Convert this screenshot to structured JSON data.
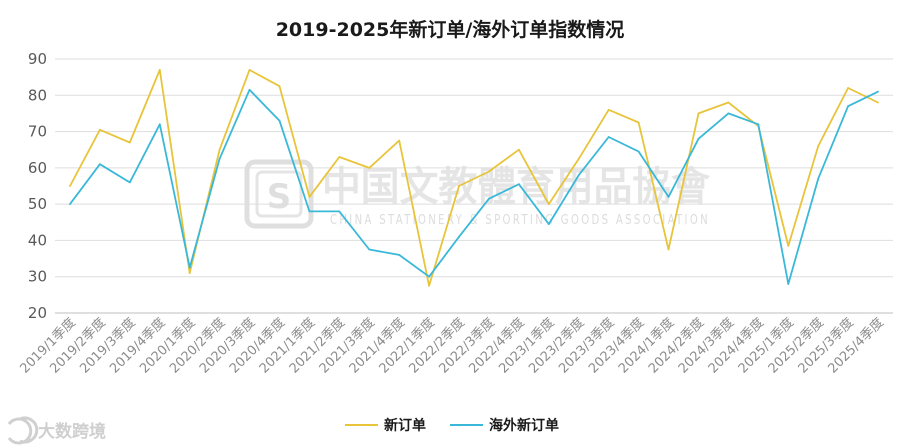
{
  "chart_data": {
    "type": "line",
    "title": "2019-2025年新订单/海外订单指数情况",
    "xlabel": "",
    "ylabel": "",
    "ylim": [
      20,
      90
    ],
    "yticks": [
      20,
      30,
      40,
      50,
      60,
      70,
      80,
      90
    ],
    "grid": true,
    "legend_position": "bottom",
    "categories": [
      "2019/1季度",
      "2019/2季度",
      "2019/3季度",
      "2019/4季度",
      "2020/1季度",
      "2020/2季度",
      "2020/3季度",
      "2020/4季度",
      "2021/1季度",
      "2021/2季度",
      "2021/3季度",
      "2021/4季度",
      "2022/1季度",
      "2022/2季度",
      "2022/3季度",
      "2022/4季度",
      "2023/1季度",
      "2023/2季度",
      "2023/3季度",
      "2023/4季度",
      "2024/1季度",
      "2024/2季度",
      "2024/3季度",
      "2024/4季度",
      "2025/1季度",
      "2025/2季度",
      "2025/3季度",
      "2025/4季度"
    ],
    "series": [
      {
        "name": "新订单",
        "color": "#e8c43a",
        "values": [
          55,
          70.5,
          67,
          87,
          31,
          65,
          87,
          82.5,
          52,
          63,
          60,
          67.5,
          27.5,
          55,
          59,
          65,
          50,
          62.5,
          76,
          72.5,
          37.5,
          75,
          78,
          71.5,
          38.5,
          66,
          82,
          78
        ]
      },
      {
        "name": "海外新订单",
        "color": "#3ab8d8",
        "values": [
          50,
          61,
          56,
          72,
          32.5,
          62.5,
          81.5,
          73,
          48,
          48,
          37.5,
          36,
          30,
          41,
          51.5,
          55.5,
          44.5,
          58,
          68.5,
          64.5,
          52,
          68,
          75,
          72,
          28,
          57,
          77,
          81
        ]
      }
    ]
  },
  "watermark": {
    "cn": "中国文教體育用品協會",
    "en": "CHINA STATIONERY & SPORTING GOODS ASSOCIATION",
    "logo_letter": "S"
  },
  "brand": {
    "text": "大数跨境",
    "icon": "brand-logo-icon"
  }
}
